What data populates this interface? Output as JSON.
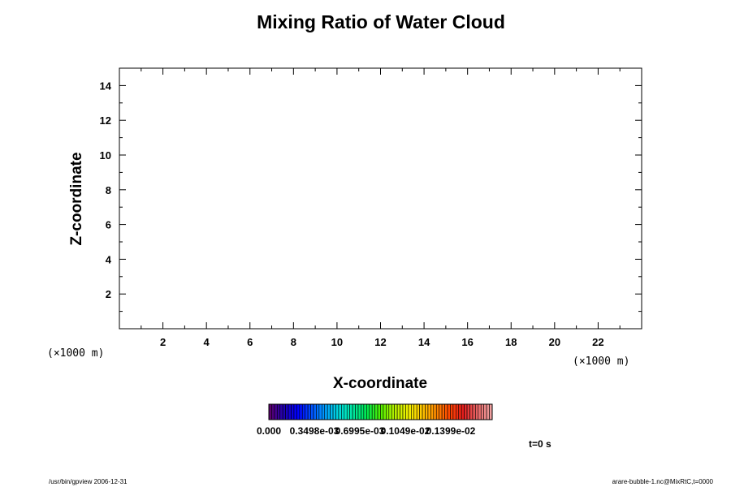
{
  "chart_data": {
    "type": "heatmap",
    "title": "Mixing Ratio of Water Cloud",
    "xlabel": "X-coordinate",
    "ylabel": "Z-coordinate",
    "x_unit": "(×1000 m)",
    "y_unit": "(×1000 m)",
    "xlim": [
      0,
      24
    ],
    "ylim": [
      0,
      15
    ],
    "x_ticks": [
      2,
      4,
      6,
      8,
      10,
      12,
      14,
      16,
      18,
      20,
      22
    ],
    "y_ticks": [
      2,
      4,
      6,
      8,
      10,
      12,
      14
    ],
    "values": [],
    "colorbar": {
      "labels": [
        "0.000",
        "0.3498e-03",
        "0.6995e-03",
        "0.1049e-02",
        "0.1399e-02"
      ],
      "colors": [
        "#ffffff",
        "#5a006e",
        "#1e00b4",
        "#0000ff",
        "#0050ff",
        "#00a0ff",
        "#00dcdc",
        "#00e6a0",
        "#00e650",
        "#50f000",
        "#b4f000",
        "#f0f000",
        "#ffc800",
        "#ff8c00",
        "#ff4600",
        "#e61e1e",
        "#e66464",
        "#f0a0a0"
      ]
    },
    "time_label": "t=0 s"
  },
  "footer": {
    "left": "/usr/bin/gpview 2006-12-31",
    "right": "arare-bubble-1.nc@MixRtC,t=0000"
  }
}
